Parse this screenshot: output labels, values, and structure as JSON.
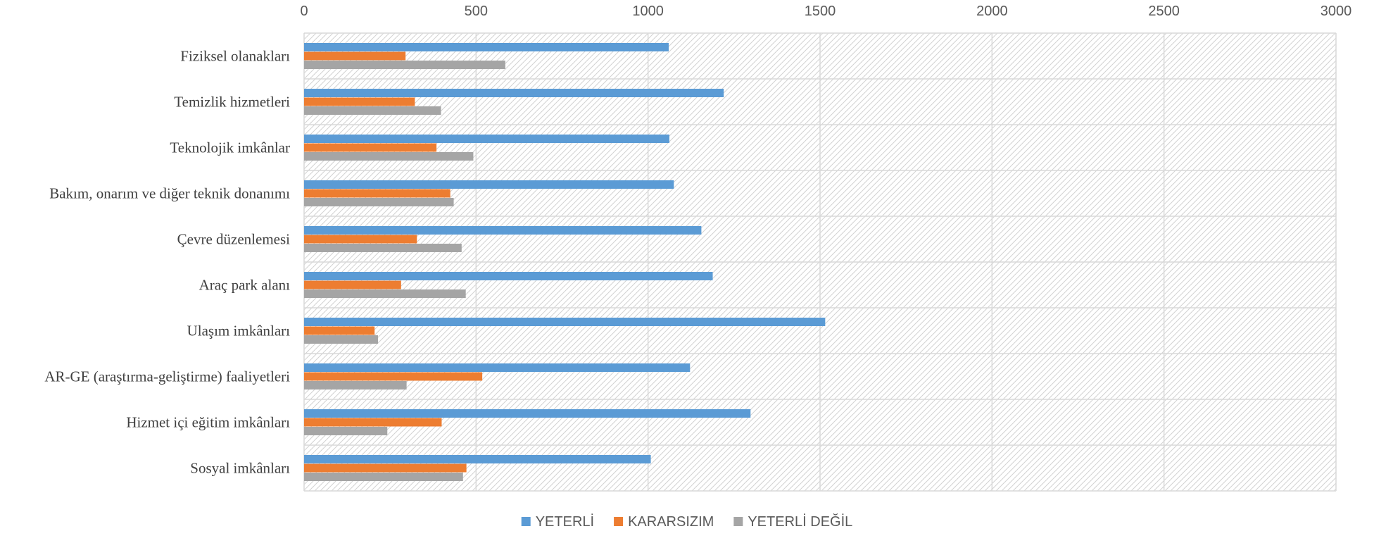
{
  "chart_data": {
    "type": "bar",
    "orientation": "horizontal",
    "title": "",
    "xlabel": "",
    "ylabel": "",
    "xlim": [
      0,
      3000
    ],
    "x_ticks": [
      0,
      500,
      1000,
      1500,
      2000,
      2500,
      3000
    ],
    "x_axis_position": "top",
    "grid": true,
    "legend_position": "bottom",
    "categories": [
      "Fiziksel olanakları",
      "Temizlik hizmetleri",
      "Teknolojik imkânlar",
      "Bakım, onarım ve diğer teknik donanımı",
      "Çevre düzenlemesi",
      "Araç park alanı",
      "Ulaşım imkânları",
      "AR-GE (araştırma-geliştirme) faaliyetleri",
      "Hizmet içi eğitim imkânları",
      "Sosyal imkânları"
    ],
    "series": [
      {
        "name": "YETERLİ",
        "color": "#5B9BD5",
        "values": [
          1060,
          1220,
          1062,
          1075,
          1155,
          1188,
          1515,
          1122,
          1298,
          1008
        ]
      },
      {
        "name": "KARARSIZIM",
        "color": "#ED7D31",
        "values": [
          295,
          322,
          385,
          425,
          328,
          282,
          205,
          518,
          400,
          472
        ]
      },
      {
        "name": "YETERLİ DEĞİL",
        "color": "#A5A5A5",
        "values": [
          585,
          398,
          492,
          435,
          458,
          470,
          215,
          298,
          242,
          462
        ]
      }
    ]
  },
  "colors": {
    "gridline": "#d9d9d9",
    "hatch": "#d0d0d0",
    "tick_text": "#595959",
    "category_text": "#404040"
  }
}
